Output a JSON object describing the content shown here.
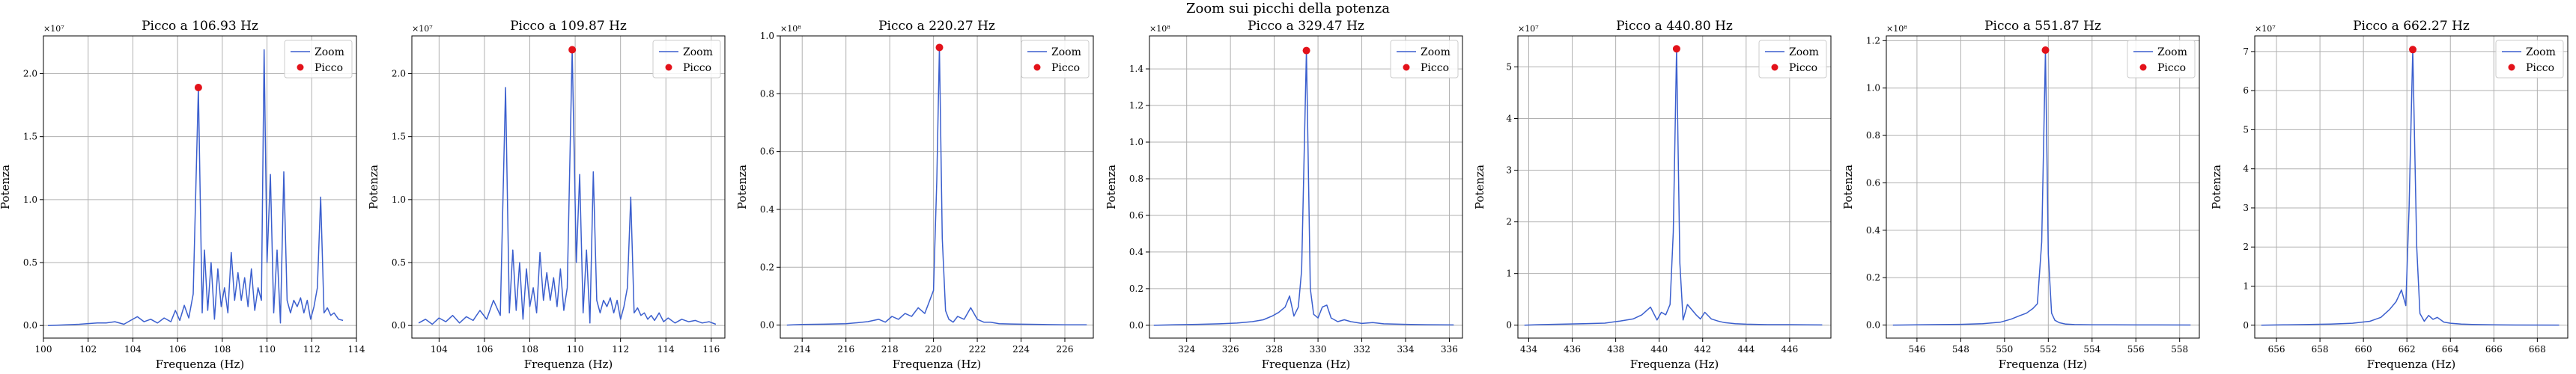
{
  "suptitle": "Zoom sui picchi della potenza",
  "colors": {
    "zoom": "#3b5fce",
    "peak": "#e3121a",
    "grid": "#b0b0b0"
  },
  "chart_data": [
    {
      "type": "line",
      "title": "Picco a 106.93 Hz",
      "xlabel": "Frequenza (Hz)",
      "ylabel": "Potenza",
      "xlim": [
        100,
        114
      ],
      "ylim": [
        -0.1,
        2.3
      ],
      "xticks": [
        100,
        102,
        104,
        106,
        108,
        110,
        112,
        114
      ],
      "xtick_labels": [
        "100",
        "102",
        "104",
        "106",
        "108",
        "110",
        "112",
        "114"
      ],
      "yticks": [
        0,
        0.5,
        1.0,
        1.5,
        2.0
      ],
      "ytick_labels": [
        "0.0",
        "0.5",
        "1.0",
        "1.5",
        "2.0"
      ],
      "scale_label": "×10⁷",
      "legend": {
        "position": "top-right",
        "entries": [
          "Zoom",
          "Picco"
        ]
      },
      "grid": true,
      "series": [
        {
          "name": "Zoom",
          "x": [
            100.2,
            101.0,
            101.6,
            102.0,
            102.4,
            102.8,
            103.2,
            103.6,
            103.9,
            104.2,
            104.5,
            104.8,
            105.1,
            105.4,
            105.7,
            105.9,
            106.1,
            106.3,
            106.5,
            106.7,
            106.93,
            107.1,
            107.2,
            107.35,
            107.5,
            107.65,
            107.8,
            107.95,
            108.1,
            108.25,
            108.4,
            108.55,
            108.7,
            108.85,
            109.0,
            109.15,
            109.3,
            109.45,
            109.6,
            109.75,
            109.87,
            110.0,
            110.15,
            110.3,
            110.45,
            110.6,
            110.75,
            110.9,
            111.05,
            111.2,
            111.35,
            111.5,
            111.65,
            111.8,
            111.95,
            112.1,
            112.25,
            112.4,
            112.55,
            112.7,
            112.85,
            113.0,
            113.2,
            113.4
          ],
          "y": [
            0.0,
            0.005,
            0.01,
            0.015,
            0.02,
            0.02,
            0.03,
            0.01,
            0.04,
            0.07,
            0.03,
            0.05,
            0.02,
            0.06,
            0.03,
            0.12,
            0.04,
            0.16,
            0.06,
            0.25,
            1.89,
            0.1,
            0.6,
            0.12,
            0.5,
            0.05,
            0.45,
            0.15,
            0.3,
            0.1,
            0.58,
            0.2,
            0.42,
            0.2,
            0.38,
            0.15,
            0.45,
            0.12,
            0.3,
            0.2,
            2.19,
            0.5,
            1.2,
            0.1,
            0.6,
            0.02,
            1.22,
            0.2,
            0.1,
            0.2,
            0.15,
            0.22,
            0.1,
            0.2,
            0.05,
            0.15,
            0.3,
            1.02,
            0.1,
            0.14,
            0.08,
            0.1,
            0.05,
            0.04
          ]
        },
        {
          "name": "Picco",
          "x": [
            106.93
          ],
          "y": [
            1.89
          ]
        }
      ]
    },
    {
      "type": "line",
      "title": "Picco a 109.87 Hz",
      "xlabel": "Frequenza (Hz)",
      "ylabel": "Potenza",
      "xlim": [
        102.8,
        116.6
      ],
      "ylim": [
        -0.1,
        2.3
      ],
      "xticks": [
        104,
        106,
        108,
        110,
        112,
        114,
        116
      ],
      "xtick_labels": [
        "104",
        "106",
        "108",
        "110",
        "112",
        "114",
        "116"
      ],
      "yticks": [
        0,
        0.5,
        1.0,
        1.5,
        2.0
      ],
      "ytick_labels": [
        "0.0",
        "0.5",
        "1.0",
        "1.5",
        "2.0"
      ],
      "scale_label": "×10⁷",
      "legend": {
        "position": "top-right",
        "entries": [
          "Zoom",
          "Picco"
        ]
      },
      "grid": true,
      "series": [
        {
          "name": "Zoom",
          "x": [
            103.1,
            103.4,
            103.7,
            104.0,
            104.3,
            104.6,
            104.9,
            105.2,
            105.5,
            105.8,
            106.1,
            106.4,
            106.7,
            106.93,
            107.1,
            107.25,
            107.4,
            107.55,
            107.7,
            107.85,
            108.0,
            108.15,
            108.3,
            108.45,
            108.6,
            108.75,
            108.9,
            109.05,
            109.2,
            109.35,
            109.5,
            109.65,
            109.87,
            110.05,
            110.2,
            110.35,
            110.5,
            110.65,
            110.8,
            110.95,
            111.1,
            111.25,
            111.4,
            111.55,
            111.7,
            111.85,
            112.0,
            112.15,
            112.3,
            112.45,
            112.6,
            112.75,
            112.9,
            113.05,
            113.2,
            113.35,
            113.5,
            113.7,
            113.9,
            114.1,
            114.4,
            114.7,
            115.0,
            115.3,
            115.6,
            115.9,
            116.2
          ],
          "y": [
            0.02,
            0.05,
            0.01,
            0.06,
            0.03,
            0.08,
            0.02,
            0.07,
            0.04,
            0.12,
            0.05,
            0.2,
            0.08,
            1.89,
            0.1,
            0.6,
            0.12,
            0.5,
            0.05,
            0.45,
            0.15,
            0.3,
            0.1,
            0.58,
            0.2,
            0.42,
            0.2,
            0.38,
            0.15,
            0.45,
            0.12,
            0.3,
            2.19,
            0.5,
            1.2,
            0.1,
            0.6,
            0.02,
            1.22,
            0.2,
            0.1,
            0.2,
            0.15,
            0.22,
            0.1,
            0.2,
            0.05,
            0.15,
            0.3,
            1.02,
            0.1,
            0.14,
            0.08,
            0.1,
            0.05,
            0.08,
            0.04,
            0.1,
            0.03,
            0.06,
            0.02,
            0.05,
            0.03,
            0.04,
            0.02,
            0.03,
            0.01
          ]
        },
        {
          "name": "Picco",
          "x": [
            109.87
          ],
          "y": [
            2.19
          ]
        }
      ]
    },
    {
      "type": "line",
      "title": "Picco a 220.27 Hz",
      "xlabel": "Frequenza (Hz)",
      "ylabel": "Potenza",
      "xlim": [
        213.0,
        227.3
      ],
      "ylim": [
        -0.045,
        1.0
      ],
      "xticks": [
        214,
        216,
        218,
        220,
        222,
        224,
        226
      ],
      "xtick_labels": [
        "214",
        "216",
        "218",
        "220",
        "222",
        "224",
        "226"
      ],
      "yticks": [
        0,
        0.2,
        0.4,
        0.6,
        0.8,
        1.0
      ],
      "ytick_labels": [
        "0.0",
        "0.2",
        "0.4",
        "0.6",
        "0.8",
        "1.0"
      ],
      "scale_label": "×10⁸",
      "legend": {
        "position": "top-right",
        "entries": [
          "Zoom",
          "Picco"
        ]
      },
      "grid": true,
      "series": [
        {
          "name": "Zoom",
          "x": [
            213.3,
            214.0,
            215.0,
            216.0,
            216.5,
            217.0,
            217.5,
            217.8,
            218.1,
            218.4,
            218.7,
            219.0,
            219.3,
            219.6,
            219.8,
            220.0,
            220.15,
            220.27,
            220.4,
            220.55,
            220.7,
            220.9,
            221.1,
            221.4,
            221.7,
            222.0,
            222.3,
            222.6,
            223.0,
            223.5,
            224.0,
            225.0,
            226.0,
            227.0
          ],
          "y": [
            0.0,
            0.002,
            0.003,
            0.005,
            0.008,
            0.012,
            0.02,
            0.01,
            0.03,
            0.02,
            0.04,
            0.03,
            0.06,
            0.04,
            0.08,
            0.12,
            0.5,
            0.96,
            0.3,
            0.05,
            0.02,
            0.01,
            0.03,
            0.02,
            0.06,
            0.02,
            0.01,
            0.01,
            0.005,
            0.004,
            0.003,
            0.002,
            0.001,
            0.001
          ]
        },
        {
          "name": "Picco",
          "x": [
            220.27
          ],
          "y": [
            0.96
          ]
        }
      ]
    },
    {
      "type": "line",
      "title": "Picco a 329.47 Hz",
      "xlabel": "Frequenza (Hz)",
      "ylabel": "Potenza",
      "xlim": [
        322.3,
        336.6
      ],
      "ylim": [
        -0.07,
        1.58
      ],
      "xticks": [
        324,
        326,
        328,
        330,
        332,
        334,
        336
      ],
      "xtick_labels": [
        "324",
        "326",
        "328",
        "330",
        "332",
        "334",
        "336"
      ],
      "yticks": [
        0,
        0.2,
        0.4,
        0.6,
        0.8,
        1.0,
        1.2,
        1.4
      ],
      "ytick_labels": [
        "0.0",
        "0.2",
        "0.4",
        "0.6",
        "0.8",
        "1.0",
        "1.2",
        "1.4"
      ],
      "scale_label": "×10⁸",
      "legend": {
        "position": "top-right",
        "entries": [
          "Zoom",
          "Picco"
        ]
      },
      "grid": true,
      "series": [
        {
          "name": "Zoom",
          "x": [
            322.5,
            323.5,
            324.5,
            325.5,
            326.3,
            327.0,
            327.5,
            327.9,
            328.2,
            328.5,
            328.7,
            328.9,
            329.1,
            329.25,
            329.47,
            329.65,
            329.8,
            330.0,
            330.2,
            330.4,
            330.6,
            330.9,
            331.2,
            331.5,
            332.0,
            332.5,
            333.0,
            334.0,
            335.0,
            336.2
          ],
          "y": [
            0.0,
            0.003,
            0.005,
            0.008,
            0.012,
            0.02,
            0.03,
            0.05,
            0.07,
            0.1,
            0.16,
            0.05,
            0.1,
            0.3,
            1.5,
            0.2,
            0.06,
            0.04,
            0.1,
            0.11,
            0.04,
            0.02,
            0.03,
            0.02,
            0.01,
            0.015,
            0.008,
            0.005,
            0.003,
            0.002
          ]
        },
        {
          "name": "Picco",
          "x": [
            329.47
          ],
          "y": [
            1.5
          ]
        }
      ]
    },
    {
      "type": "line",
      "title": "Picco a 440.80 Hz",
      "xlabel": "Frequenza (Hz)",
      "ylabel": "Potenza",
      "xlim": [
        433.5,
        447.9
      ],
      "ylim": [
        -0.25,
        5.6
      ],
      "xticks": [
        434,
        436,
        438,
        440,
        442,
        444,
        446
      ],
      "xtick_labels": [
        "434",
        "436",
        "438",
        "440",
        "442",
        "444",
        "446"
      ],
      "yticks": [
        0,
        1,
        2,
        3,
        4,
        5
      ],
      "ytick_labels": [
        "0",
        "1",
        "2",
        "3",
        "4",
        "5"
      ],
      "scale_label": "×10⁷",
      "legend": {
        "position": "top-right",
        "entries": [
          "Zoom",
          "Picco"
        ]
      },
      "grid": true,
      "series": [
        {
          "name": "Zoom",
          "x": [
            433.8,
            434.5,
            435.5,
            436.5,
            437.5,
            438.2,
            438.8,
            439.2,
            439.6,
            439.9,
            440.1,
            440.3,
            440.5,
            440.65,
            440.8,
            440.95,
            441.1,
            441.3,
            441.5,
            441.7,
            441.9,
            442.1,
            442.4,
            442.7,
            443.0,
            443.5,
            444.0,
            445.0,
            446.0,
            447.5
          ],
          "y": [
            0.0,
            0.01,
            0.02,
            0.03,
            0.04,
            0.08,
            0.12,
            0.2,
            0.35,
            0.1,
            0.25,
            0.2,
            0.4,
            1.8,
            5.35,
            1.2,
            0.1,
            0.4,
            0.3,
            0.2,
            0.12,
            0.25,
            0.12,
            0.08,
            0.05,
            0.03,
            0.02,
            0.01,
            0.01,
            0.005
          ]
        },
        {
          "name": "Picco",
          "x": [
            440.8
          ],
          "y": [
            5.35
          ]
        }
      ]
    },
    {
      "type": "line",
      "title": "Picco a 551.87 Hz",
      "xlabel": "Frequenza (Hz)",
      "ylabel": "Potenza",
      "xlim": [
        544.6,
        558.9
      ],
      "ylim": [
        -0.055,
        1.22
      ],
      "xticks": [
        546,
        548,
        550,
        552,
        554,
        556,
        558
      ],
      "xtick_labels": [
        "546",
        "548",
        "550",
        "552",
        "554",
        "556",
        "558"
      ],
      "yticks": [
        0,
        0.2,
        0.4,
        0.6,
        0.8,
        1.0,
        1.2
      ],
      "ytick_labels": [
        "0.0",
        "0.2",
        "0.4",
        "0.6",
        "0.8",
        "1.0",
        "1.2"
      ],
      "scale_label": "×10⁸",
      "legend": {
        "position": "top-right",
        "entries": [
          "Zoom",
          "Picco"
        ]
      },
      "grid": true,
      "series": [
        {
          "name": "Zoom",
          "x": [
            544.9,
            546.0,
            547.0,
            548.0,
            549.0,
            549.8,
            550.3,
            550.7,
            551.0,
            551.3,
            551.5,
            551.7,
            551.87,
            552.0,
            552.15,
            552.3,
            552.5,
            552.8,
            553.2,
            554.0,
            555.0,
            556.0,
            557.0,
            558.5
          ],
          "y": [
            0.0,
            0.001,
            0.002,
            0.003,
            0.006,
            0.012,
            0.025,
            0.04,
            0.05,
            0.07,
            0.09,
            0.35,
            1.16,
            0.3,
            0.05,
            0.02,
            0.01,
            0.004,
            0.002,
            0.001,
            0.001,
            0.0005,
            0.0005,
            0.0003
          ]
        },
        {
          "name": "Picco",
          "x": [
            551.87
          ],
          "y": [
            1.16
          ]
        }
      ]
    },
    {
      "type": "line",
      "title": "Picco a 662.27 Hz",
      "xlabel": "Frequenza (Hz)",
      "ylabel": "Potenza",
      "xlim": [
        655.0,
        669.4
      ],
      "ylim": [
        -0.33,
        7.4
      ],
      "xticks": [
        656,
        658,
        660,
        662,
        664,
        666,
        668
      ],
      "xtick_labels": [
        "656",
        "658",
        "660",
        "662",
        "664",
        "666",
        "668"
      ],
      "yticks": [
        0,
        1,
        2,
        3,
        4,
        5,
        6,
        7
      ],
      "ytick_labels": [
        "0",
        "1",
        "2",
        "3",
        "4",
        "5",
        "6",
        "7"
      ],
      "scale_label": "×10⁷",
      "legend": {
        "position": "top-right",
        "entries": [
          "Zoom",
          "Picco"
        ]
      },
      "grid": true,
      "series": [
        {
          "name": "Zoom",
          "x": [
            655.3,
            656.5,
            657.5,
            658.5,
            659.5,
            660.3,
            660.8,
            661.2,
            661.5,
            661.75,
            661.95,
            662.1,
            662.27,
            662.45,
            662.6,
            662.8,
            663.0,
            663.2,
            663.4,
            663.7,
            664.0,
            664.5,
            665.0,
            666.0,
            667.0,
            669.0
          ],
          "y": [
            0.0,
            0.01,
            0.02,
            0.03,
            0.05,
            0.1,
            0.2,
            0.4,
            0.6,
            0.9,
            0.5,
            3.0,
            7.05,
            2.0,
            0.3,
            0.1,
            0.25,
            0.15,
            0.2,
            0.08,
            0.05,
            0.03,
            0.02,
            0.01,
            0.005,
            0.002
          ]
        },
        {
          "name": "Picco",
          "x": [
            662.27
          ],
          "y": [
            7.05
          ]
        }
      ]
    }
  ]
}
